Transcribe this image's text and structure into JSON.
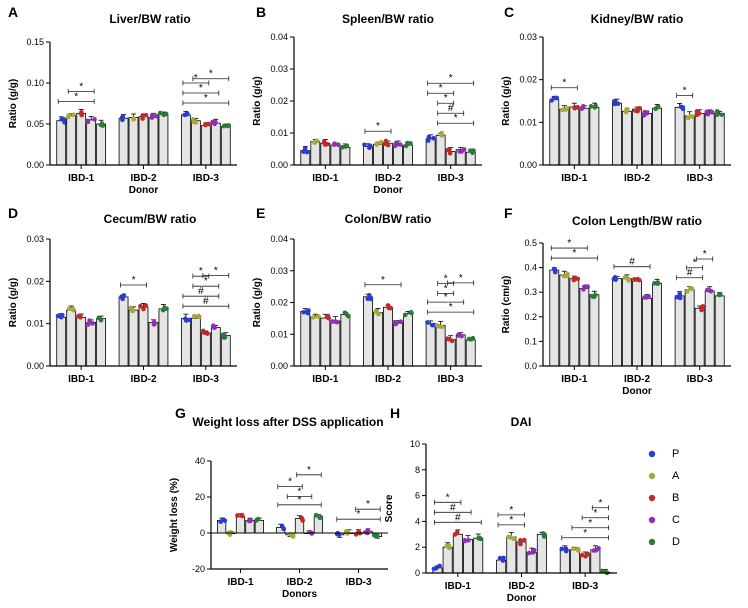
{
  "figure": {
    "legend": {
      "entries": [
        {
          "key": "P",
          "color": "#2b3bd1"
        },
        {
          "key": "A",
          "color": "#a8a83a"
        },
        {
          "key": "B",
          "color": "#c22a2a"
        },
        {
          "key": "C",
          "color": "#8e2fb5"
        },
        {
          "key": "D",
          "color": "#2b7a3a"
        }
      ]
    },
    "bar_fill": "#e5e5e5"
  },
  "chart_data": [
    {
      "id": "A",
      "label": "A",
      "type": "bar",
      "title": "Liver/BW ratio",
      "ylabel": "Ratio (g/g)",
      "xlabel": "Donor",
      "ylim": [
        0,
        0.15
      ],
      "yticks": [
        0,
        0.05,
        0.1,
        0.15
      ],
      "ytick_labels": [
        "0.00",
        "0.05",
        "0.10",
        "0.15"
      ],
      "categories": [
        "IBD-1",
        "IBD-2",
        "IBD-3"
      ],
      "series": [
        {
          "name": "P",
          "values": [
            0.054,
            0.057,
            0.061
          ]
        },
        {
          "name": "A",
          "values": [
            0.06,
            0.058,
            0.054
          ]
        },
        {
          "name": "B",
          "values": [
            0.063,
            0.059,
            0.048
          ]
        },
        {
          "name": "C",
          "values": [
            0.055,
            0.058,
            0.051
          ]
        },
        {
          "name": "D",
          "values": [
            0.05,
            0.062,
            0.047
          ]
        }
      ],
      "annotations": [
        {
          "group": 0,
          "from": 0,
          "to": 3,
          "text": "*"
        },
        {
          "group": 0,
          "from": 1,
          "to": 3,
          "text": "*"
        },
        {
          "group": 2,
          "from": 0,
          "to": 4,
          "text": "*"
        },
        {
          "group": 2,
          "from": 0,
          "to": 3,
          "text": "*"
        },
        {
          "group": 2,
          "from": 0,
          "to": 2,
          "text": "*"
        },
        {
          "group": 2,
          "from": 1,
          "to": 4,
          "text": "*"
        }
      ]
    },
    {
      "id": "B",
      "label": "B",
      "type": "bar",
      "title": "Spleen/BW ratio",
      "ylabel": "Ratio (g/g)",
      "xlabel": "Donor",
      "ylim": [
        0,
        0.04
      ],
      "yticks": [
        0,
        0.01,
        0.02,
        0.03,
        0.04
      ],
      "ytick_labels": [
        "0.00",
        "0.01",
        "0.02",
        "0.03",
        "0.04"
      ],
      "categories": [
        "IBD-1",
        "IBD-2",
        "IBD-3"
      ],
      "series": [
        {
          "name": "P",
          "values": [
            0.0045,
            0.0058,
            0.0082
          ]
        },
        {
          "name": "A",
          "values": [
            0.0073,
            0.0065,
            0.0093
          ]
        },
        {
          "name": "B",
          "values": [
            0.0068,
            0.0068,
            0.0042
          ]
        },
        {
          "name": "C",
          "values": [
            0.0062,
            0.0062,
            0.0048
          ]
        },
        {
          "name": "D",
          "values": [
            0.0055,
            0.0062,
            0.004
          ]
        }
      ],
      "annotations": [
        {
          "group": 1,
          "from": 0,
          "to": 2,
          "text": "*"
        },
        {
          "group": 2,
          "from": 1,
          "to": 4,
          "text": "*"
        },
        {
          "group": 2,
          "from": 1,
          "to": 3,
          "text": "#"
        },
        {
          "group": 2,
          "from": 1,
          "to": 2,
          "text": "*"
        },
        {
          "group": 2,
          "from": 0,
          "to": 2,
          "text": "*"
        },
        {
          "group": 2,
          "from": 0,
          "to": 4,
          "text": "*"
        }
      ]
    },
    {
      "id": "C",
      "label": "C",
      "type": "bar",
      "title": "Kidney/BW ratio",
      "ylabel": "Ratio (g/g)",
      "xlabel": "",
      "ylim": [
        0,
        0.03
      ],
      "yticks": [
        0,
        0.01,
        0.02,
        0.03
      ],
      "ytick_labels": [
        "0.00",
        "0.01",
        "0.02",
        "0.03"
      ],
      "categories": [
        "IBD-1",
        "IBD-2",
        "IBD-3"
      ],
      "series": [
        {
          "name": "P",
          "values": [
            0.0153,
            0.0145,
            0.0135
          ]
        },
        {
          "name": "A",
          "values": [
            0.0131,
            0.0126,
            0.0115
          ]
        },
        {
          "name": "B",
          "values": [
            0.0136,
            0.0131,
            0.0121
          ]
        },
        {
          "name": "C",
          "values": [
            0.0133,
            0.0121,
            0.0124
          ]
        },
        {
          "name": "D",
          "values": [
            0.0135,
            0.0133,
            0.0121
          ]
        }
      ],
      "annotations": [
        {
          "group": 0,
          "from": 0,
          "to": 2,
          "text": "*"
        },
        {
          "group": 2,
          "from": 0,
          "to": 1,
          "text": "*"
        }
      ]
    },
    {
      "id": "D",
      "label": "D",
      "type": "bar",
      "title": "Cecum/BW ratio",
      "ylabel": "Ratio (g/g)",
      "xlabel": "",
      "ylim": [
        0,
        0.03
      ],
      "yticks": [
        0,
        0.01,
        0.02,
        0.03
      ],
      "ytick_labels": [
        "0.00",
        "0.01",
        "0.02",
        "0.03"
      ],
      "categories": [
        "IBD-1",
        "IBD-2",
        "IBD-3"
      ],
      "series": [
        {
          "name": "P",
          "values": [
            0.0115,
            0.0163,
            0.0112
          ]
        },
        {
          "name": "A",
          "values": [
            0.0132,
            0.0132,
            0.0113
          ]
        },
        {
          "name": "B",
          "values": [
            0.0115,
            0.0139,
            0.0078
          ]
        },
        {
          "name": "C",
          "values": [
            0.0103,
            0.0103,
            0.0091
          ]
        },
        {
          "name": "D",
          "values": [
            0.0112,
            0.0135,
            0.0072
          ]
        }
      ],
      "annotations": [
        {
          "group": 1,
          "from": 0,
          "to": 2,
          "text": "*"
        },
        {
          "group": 2,
          "from": 0,
          "to": 4,
          "text": "#"
        },
        {
          "group": 2,
          "from": 0,
          "to": 3,
          "text": "#"
        },
        {
          "group": 2,
          "from": 1,
          "to": 3,
          "text": "*"
        },
        {
          "group": 2,
          "from": 1,
          "to": 2,
          "text": "*"
        },
        {
          "group": 2,
          "from": 2,
          "to": 4,
          "text": "*"
        }
      ]
    },
    {
      "id": "E",
      "label": "E",
      "type": "bar",
      "title": "Colon/BW ratio",
      "ylabel": "Ratio (g/g)",
      "xlabel": "",
      "ylim": [
        0,
        0.04
      ],
      "yticks": [
        0,
        0.01,
        0.02,
        0.03,
        0.04
      ],
      "ytick_labels": [
        "0.00",
        "0.01",
        "0.02",
        "0.03",
        "0.04"
      ],
      "categories": [
        "IBD-1",
        "IBD-2",
        "IBD-3"
      ],
      "series": [
        {
          "name": "P",
          "values": [
            0.0172,
            0.0218,
            0.0132
          ]
        },
        {
          "name": "A",
          "values": [
            0.0155,
            0.0168,
            0.0128
          ]
        },
        {
          "name": "B",
          "values": [
            0.0151,
            0.0185,
            0.0083
          ]
        },
        {
          "name": "C",
          "values": [
            0.0142,
            0.0135,
            0.0098
          ]
        },
        {
          "name": "D",
          "values": [
            0.0162,
            0.0165,
            0.0082
          ]
        }
      ],
      "annotations": [
        {
          "group": 1,
          "from": 0,
          "to": 3,
          "text": "*"
        },
        {
          "group": 2,
          "from": 0,
          "to": 4,
          "text": "*"
        },
        {
          "group": 2,
          "from": 0,
          "to": 3,
          "text": "*"
        },
        {
          "group": 2,
          "from": 1,
          "to": 2,
          "text": "*"
        },
        {
          "group": 2,
          "from": 1,
          "to": 2,
          "text": "*"
        },
        {
          "group": 2,
          "from": 2,
          "to": 4,
          "text": "*"
        }
      ]
    },
    {
      "id": "F",
      "label": "F",
      "type": "bar",
      "title": "Colon Length/BW ratio",
      "ylabel": "Ratio (cm/g)",
      "xlabel": "Donor",
      "ylim": [
        0,
        0.5
      ],
      "yticks": [
        0,
        0.1,
        0.2,
        0.3,
        0.4,
        0.5
      ],
      "ytick_labels": [
        "0.0",
        "0.1",
        "0.2",
        "0.3",
        "0.4",
        "0.5"
      ],
      "categories": [
        "IBD-1",
        "IBD-2",
        "IBD-3"
      ],
      "series": [
        {
          "name": "P",
          "values": [
            0.39,
            0.355,
            0.285
          ]
        },
        {
          "name": "A",
          "values": [
            0.37,
            0.355,
            0.31
          ]
        },
        {
          "name": "B",
          "values": [
            0.355,
            0.345,
            0.235
          ]
        },
        {
          "name": "C",
          "values": [
            0.315,
            0.275,
            0.305
          ]
        },
        {
          "name": "D",
          "values": [
            0.29,
            0.335,
            0.285
          ]
        }
      ],
      "annotations": [
        {
          "group": 0,
          "from": 0,
          "to": 4,
          "text": "*"
        },
        {
          "group": 0,
          "from": 0,
          "to": 3,
          "text": "*"
        },
        {
          "group": 1,
          "from": 0,
          "to": 3,
          "text": "#"
        },
        {
          "group": 2,
          "from": 0,
          "to": 2,
          "text": "#"
        },
        {
          "group": 2,
          "from": 1,
          "to": 2,
          "text": "*"
        },
        {
          "group": 2,
          "from": 2,
          "to": 3,
          "text": "*"
        }
      ]
    },
    {
      "id": "G",
      "label": "G",
      "type": "bar",
      "title": "Weight loss after DSS application",
      "ylabel": "Weight loss (%)",
      "xlabel": "Donors",
      "ylim": [
        -20,
        40
      ],
      "yticks": [
        -20,
        0,
        20,
        40
      ],
      "ytick_labels": [
        "-20",
        "0",
        "20",
        "40"
      ],
      "categories": [
        "IBD-1",
        "IBD-2",
        "IBD-3"
      ],
      "series": [
        {
          "name": "P",
          "values": [
            7,
            3,
            -1
          ]
        },
        {
          "name": "A",
          "values": [
            0,
            -1,
            0
          ]
        },
        {
          "name": "B",
          "values": [
            9,
            8,
            0
          ]
        },
        {
          "name": "C",
          "values": [
            7,
            0,
            1
          ]
        },
        {
          "name": "D",
          "values": [
            7,
            9,
            -2
          ]
        }
      ],
      "annotations": [
        {
          "group": 1,
          "from": 0,
          "to": 4,
          "text": "*"
        },
        {
          "group": 1,
          "from": 1,
          "to": 3,
          "text": "*"
        },
        {
          "group": 1,
          "from": 0,
          "to": 2,
          "text": "*"
        },
        {
          "group": 1,
          "from": 2,
          "to": 4,
          "text": "*"
        },
        {
          "group": 2,
          "from": 0,
          "to": 4,
          "text": "*"
        },
        {
          "group": 2,
          "from": 2,
          "to": 4,
          "text": "*"
        }
      ]
    },
    {
      "id": "H",
      "label": "H",
      "type": "bar",
      "title": "DAI",
      "ylabel": "Score",
      "xlabel": "Donor",
      "ylim": [
        0,
        10
      ],
      "yticks": [
        0,
        2,
        4,
        6,
        8,
        10
      ],
      "ytick_labels": [
        "0",
        "2",
        "4",
        "6",
        "8",
        "10"
      ],
      "categories": [
        "IBD-1",
        "IBD-2",
        "IBD-3"
      ],
      "series": [
        {
          "name": "P",
          "values": [
            0.4,
            1.0,
            1.8
          ]
        },
        {
          "name": "A",
          "values": [
            2.0,
            2.8,
            1.8
          ]
        },
        {
          "name": "B",
          "values": [
            3.0,
            2.4,
            1.4
          ]
        },
        {
          "name": "C",
          "values": [
            2.6,
            1.6,
            1.8
          ]
        },
        {
          "name": "D",
          "values": [
            2.7,
            3.0,
            0.05
          ]
        }
      ],
      "annotations": [
        {
          "group": 0,
          "from": 0,
          "to": 4,
          "text": "#"
        },
        {
          "group": 0,
          "from": 0,
          "to": 3,
          "text": "#"
        },
        {
          "group": 0,
          "from": 0,
          "to": 2,
          "text": "*"
        },
        {
          "group": 1,
          "from": 0,
          "to": 2,
          "text": "*"
        },
        {
          "group": 1,
          "from": 0,
          "to": 2,
          "text": "*"
        },
        {
          "group": 2,
          "from": 0,
          "to": 4,
          "text": "*"
        },
        {
          "group": 2,
          "from": 1,
          "to": 4,
          "text": "*"
        },
        {
          "group": 2,
          "from": 2,
          "to": 4,
          "text": "*"
        },
        {
          "group": 2,
          "from": 3,
          "to": 4,
          "text": "*"
        }
      ]
    }
  ]
}
